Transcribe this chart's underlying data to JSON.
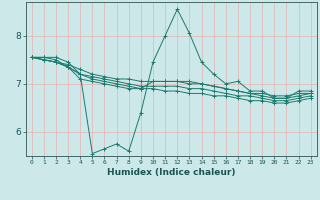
{
  "title": "",
  "xlabel": "Humidex (Indice chaleur)",
  "bg_color": "#cce8e8",
  "line_color": "#1a7a6e",
  "grid_color": "#e8b0b0",
  "xlim": [
    -0.5,
    23.5
  ],
  "ylim": [
    5.5,
    8.7
  ],
  "yticks": [
    6,
    7,
    8
  ],
  "xticks": [
    0,
    1,
    2,
    3,
    4,
    5,
    6,
    7,
    8,
    9,
    10,
    11,
    12,
    13,
    14,
    15,
    16,
    17,
    18,
    19,
    20,
    21,
    22,
    23
  ],
  "series": [
    [
      7.55,
      7.55,
      7.55,
      7.45,
      7.2,
      5.55,
      5.65,
      5.75,
      5.6,
      6.4,
      7.45,
      8.0,
      8.55,
      8.05,
      7.45,
      7.2,
      7.0,
      7.05,
      6.85,
      6.85,
      6.7,
      6.7,
      6.85,
      6.85
    ],
    [
      7.55,
      7.55,
      7.5,
      7.35,
      7.1,
      7.05,
      7.0,
      6.95,
      6.9,
      6.9,
      7.05,
      7.05,
      7.05,
      7.05,
      7.0,
      6.95,
      6.9,
      6.85,
      6.8,
      6.75,
      6.7,
      6.7,
      6.75,
      6.8
    ],
    [
      7.55,
      7.5,
      7.45,
      7.35,
      7.2,
      7.15,
      7.1,
      7.05,
      7.0,
      6.95,
      6.95,
      6.95,
      6.95,
      6.9,
      6.9,
      6.85,
      6.8,
      6.75,
      6.75,
      6.7,
      6.65,
      6.65,
      6.7,
      6.75
    ],
    [
      7.55,
      7.5,
      7.45,
      7.35,
      7.2,
      7.1,
      7.05,
      7.0,
      6.95,
      6.9,
      6.9,
      6.85,
      6.85,
      6.8,
      6.8,
      6.75,
      6.75,
      6.7,
      6.65,
      6.65,
      6.6,
      6.6,
      6.65,
      6.7
    ],
    [
      7.55,
      7.5,
      7.45,
      7.4,
      7.3,
      7.2,
      7.15,
      7.1,
      7.1,
      7.05,
      7.05,
      7.05,
      7.05,
      7.0,
      7.0,
      6.95,
      6.9,
      6.85,
      6.8,
      6.8,
      6.75,
      6.75,
      6.8,
      6.8
    ]
  ]
}
